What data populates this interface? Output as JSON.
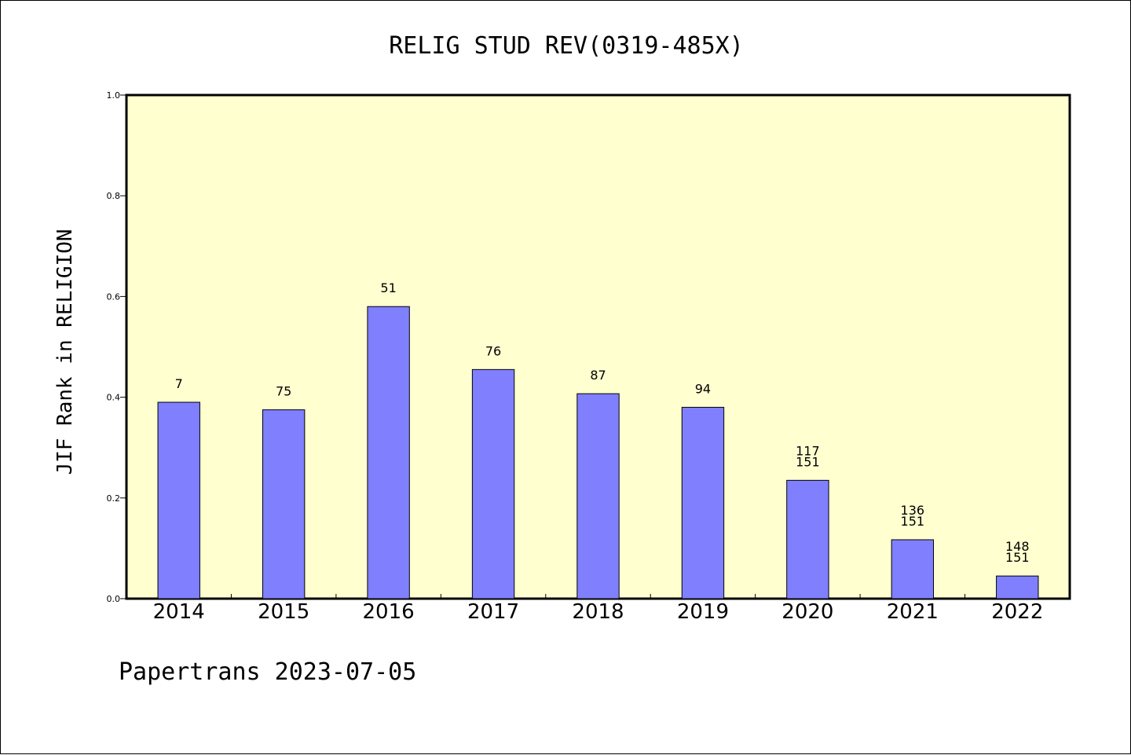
{
  "chart_data": {
    "type": "bar",
    "title": "RELIG STUD REV(0319-485X)",
    "xlabel": "",
    "ylabel": "JIF Rank in RELIGION",
    "ylim": [
      0,
      1.0
    ],
    "yticks": [
      "0.0",
      "0.2",
      "0.4",
      "0.6",
      "0.8",
      "1.0"
    ],
    "categories": [
      "2014",
      "2015",
      "2016",
      "2017",
      "2018",
      "2019",
      "2020",
      "2021",
      "2022"
    ],
    "values": [
      0.39,
      0.375,
      0.58,
      0.455,
      0.407,
      0.38,
      0.235,
      0.117,
      0.045
    ],
    "bar_labels": [
      [
        "7"
      ],
      [
        "75"
      ],
      [
        "51"
      ],
      [
        "76"
      ],
      [
        "87"
      ],
      [
        "94"
      ],
      [
        "117",
        "151"
      ],
      [
        "136",
        "151"
      ],
      [
        "148",
        "151"
      ]
    ],
    "grid": false,
    "colors": {
      "plot_background": "#ffffd0",
      "bar_fill": "#8080ff",
      "bar_stroke": "#000000"
    }
  },
  "footer": {
    "text": "Papertrans 2023-07-05"
  }
}
